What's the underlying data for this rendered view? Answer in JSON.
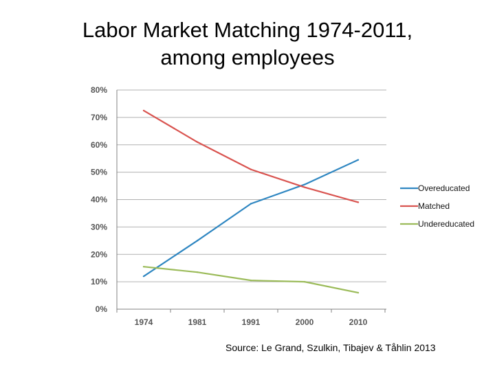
{
  "slide": {
    "title_line1": "Labor Market Matching 1974-2011,",
    "title_line2": "among employees",
    "source": "Source: Le Grand, Szulkin, Tibajev & Tåhlin 2013"
  },
  "chart_data": {
    "type": "line",
    "categories": [
      "1974",
      "1981",
      "1991",
      "2000",
      "2010"
    ],
    "y_tick_labels": [
      "0%",
      "10%",
      "20%",
      "30%",
      "40%",
      "50%",
      "60%",
      "70%",
      "80%"
    ],
    "ylim": [
      0,
      80
    ],
    "y_unit": "%",
    "grid": true,
    "legend_position": "right",
    "series": [
      {
        "name": "Overeducated",
        "color": "#2e86c1",
        "values": [
          12,
          25,
          38.5,
          45.5,
          54.5
        ]
      },
      {
        "name": "Matched",
        "color": "#d9534f",
        "values": [
          72.5,
          61,
          51,
          44.5,
          39
        ]
      },
      {
        "name": "Undereducated",
        "color": "#9bbb59",
        "values": [
          15.5,
          13.5,
          10.5,
          10,
          6
        ]
      }
    ]
  }
}
